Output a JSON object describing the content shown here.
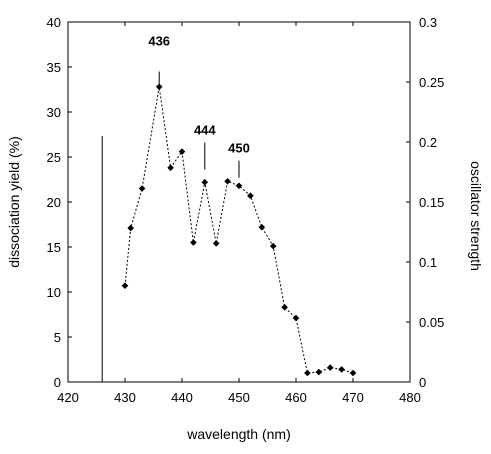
{
  "chart_data": {
    "type": "scatter",
    "title": "",
    "xlabel": "wavelength (nm)",
    "ylabel": "dissociation yield (%)",
    "y2label": "oscillator strength",
    "xlim": [
      420,
      480
    ],
    "ylim": [
      0,
      40
    ],
    "y2lim": [
      0,
      0.3
    ],
    "xticks": [
      "420",
      "430",
      "440",
      "450",
      "460",
      "470",
      "480"
    ],
    "yticks": [
      "0",
      "5",
      "10",
      "15",
      "20",
      "25",
      "30",
      "35",
      "40"
    ],
    "y2ticks": [
      "0",
      "0.05",
      "0.1",
      "0.15",
      "0.2",
      "0.25",
      "0.3"
    ],
    "grid": false,
    "legend": "none",
    "series": [
      {
        "axis": "left",
        "style": "dotted line with diamond markers",
        "color": "#000000",
        "x": [
          430,
          431,
          433,
          436,
          438,
          440,
          442,
          444,
          446,
          448,
          450,
          452,
          454,
          456,
          458,
          460,
          462,
          464,
          466,
          468,
          470
        ],
        "y": [
          10.7,
          17.1,
          21.5,
          32.8,
          23.8,
          25.6,
          15.5,
          22.2,
          15.4,
          22.3,
          21.8,
          20.7,
          17.2,
          15.1,
          8.3,
          7.1,
          1.0,
          1.1,
          1.6,
          1.4,
          1.0
        ]
      },
      {
        "axis": "right",
        "style": "vertical stick",
        "color": "#000000",
        "x": [
          426
        ],
        "y": [
          0.205
        ]
      }
    ],
    "annotations": [
      {
        "text": "436",
        "x": 436,
        "y_label": 37.4,
        "y_top": 34.5,
        "y_bottom": 34.5
      },
      {
        "text": "444",
        "x": 444,
        "y_label": 27.5,
        "y_top": 26.6,
        "y_bottom": 23.6
      },
      {
        "text": "450",
        "x": 450,
        "y_label": 25.5,
        "y_top": 24.6,
        "y_bottom": 22.7
      }
    ]
  }
}
